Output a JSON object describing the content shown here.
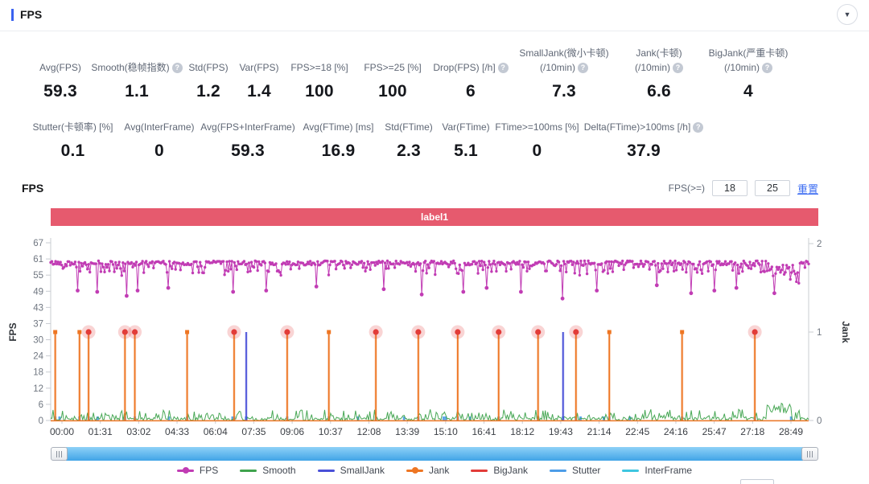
{
  "header": {
    "title": "FPS",
    "collapse_icon": "collapse-panel"
  },
  "metrics_row1": [
    {
      "label": "Avg(FPS)",
      "value": "59.3"
    },
    {
      "label": "Smooth(稳帧指数)",
      "value": "1.1",
      "help": true
    },
    {
      "label": "Std(FPS)",
      "value": "1.2"
    },
    {
      "label": "Var(FPS)",
      "value": "1.4"
    },
    {
      "label": "FPS>=18 [%]",
      "value": "100"
    },
    {
      "label": "FPS>=25 [%]",
      "value": "100"
    },
    {
      "label": "Drop(FPS) [/h]",
      "value": "6",
      "help": true
    },
    {
      "label": "SmallJank(微小卡顿)",
      "label2": "(/10min)",
      "value": "7.3",
      "help": true
    },
    {
      "label": "Jank(卡顿)",
      "label2": "(/10min)",
      "value": "6.6",
      "help": true
    },
    {
      "label": "BigJank(严重卡顿)",
      "label2": "(/10min)",
      "value": "4",
      "help": true
    }
  ],
  "metrics_row2": [
    {
      "label": "Stutter(卡顿率) [%]",
      "value": "0.1"
    },
    {
      "label": "Avg(InterFrame)",
      "value": "0"
    },
    {
      "label": "Avg(FPS+InterFrame)",
      "value": "59.3"
    },
    {
      "label": "Avg(FTime) [ms]",
      "value": "16.9"
    },
    {
      "label": "Std(FTime)",
      "value": "2.3"
    },
    {
      "label": "Var(FTime)",
      "value": "5.1"
    },
    {
      "label": "FTime>=100ms [%]",
      "value": "0"
    },
    {
      "label": "Delta(FTime)>100ms [/h]",
      "value": "37.9",
      "help": true
    }
  ],
  "chart_section": {
    "title": "FPS",
    "filter_label": "FPS(>=)",
    "input1": "18",
    "input2": "25",
    "reset_label": "重置",
    "banner": {
      "text": "label1",
      "color": "#e65a6e"
    }
  },
  "chart_data": {
    "type": "line",
    "title": "FPS",
    "x_axis": {
      "tick_labels": [
        "00:00",
        "01:31",
        "03:02",
        "04:33",
        "06:04",
        "07:35",
        "09:06",
        "10:37",
        "12:08",
        "13:39",
        "15:10",
        "16:41",
        "18:12",
        "19:43",
        "21:14",
        "22:45",
        "24:16",
        "25:47",
        "27:18",
        "28:49"
      ]
    },
    "y_axis_left": {
      "label": "FPS",
      "ticks": [
        67,
        61,
        55,
        49,
        43,
        37,
        30,
        24,
        18,
        12,
        6,
        0
      ],
      "range": [
        0,
        67
      ]
    },
    "y_axis_right": {
      "label": "Jank",
      "ticks": [
        2,
        1,
        0
      ],
      "range": [
        0,
        2
      ]
    },
    "grid": false,
    "legend_position": "bottom",
    "series": [
      {
        "name": "FPS",
        "color": "#c13cb4",
        "style": "noisy-line",
        "axis": "left",
        "baseline": 59.3,
        "noise_band": [
          54,
          61
        ],
        "deep_dips": [
          {
            "t": 0.035,
            "v": 49
          },
          {
            "t": 0.062,
            "v": 48.5
          },
          {
            "t": 0.1,
            "v": 47
          },
          {
            "t": 0.115,
            "v": 49
          },
          {
            "t": 0.155,
            "v": 50
          },
          {
            "t": 0.24,
            "v": 48.5
          },
          {
            "t": 0.285,
            "v": 49
          },
          {
            "t": 0.35,
            "v": 50.5
          },
          {
            "t": 0.44,
            "v": 49.5
          },
          {
            "t": 0.49,
            "v": 47.5
          },
          {
            "t": 0.545,
            "v": 48.5
          },
          {
            "t": 0.575,
            "v": 50
          },
          {
            "t": 0.62,
            "v": 48.5
          },
          {
            "t": 0.675,
            "v": 46
          },
          {
            "t": 0.72,
            "v": 49
          },
          {
            "t": 0.8,
            "v": 51
          },
          {
            "t": 0.845,
            "v": 48
          },
          {
            "t": 0.875,
            "v": 49
          },
          {
            "t": 0.905,
            "v": 50
          },
          {
            "t": 0.955,
            "v": 48
          }
        ],
        "degraded_window": {
          "from": 0.948,
          "to": 0.988,
          "base": 57
        }
      },
      {
        "name": "Smooth",
        "color": "#3fa34d",
        "style": "noisy-area",
        "axis": "left",
        "range": [
          0,
          6
        ]
      },
      {
        "name": "SmallJank",
        "color": "#4950d8",
        "style": "event-spike",
        "axis": "right",
        "value": 1,
        "events_t": [
          0.258,
          0.676
        ],
        "approx_times": [
          "07:50",
          "20:30"
        ]
      },
      {
        "name": "Jank",
        "color": "#ee7623",
        "style": "event-spike",
        "axis": "right",
        "value": 1,
        "events_t": [
          0.006,
          0.038,
          0.18,
          0.367,
          0.737,
          0.833
        ],
        "approx_times": [
          "00:11",
          "01:09",
          "05:28",
          "11:08",
          "22:21",
          "25:16"
        ]
      },
      {
        "name": "BigJank",
        "color": "#e23c39",
        "style": "event-spike-dot",
        "axis": "right",
        "value": 1,
        "events_t": [
          0.05,
          0.098,
          0.111,
          0.242,
          0.312,
          0.429,
          0.485,
          0.537,
          0.591,
          0.643,
          0.693,
          0.929
        ],
        "approx_times": [
          "01:31",
          "02:58",
          "03:22",
          "07:20",
          "09:28",
          "13:01",
          "14:43",
          "16:17",
          "17:56",
          "19:30",
          "21:01",
          "28:11"
        ]
      },
      {
        "name": "Stutter",
        "color": "#4d9de8",
        "style": "micro-bar",
        "axis": "left"
      },
      {
        "name": "InterFrame",
        "color": "#3ec6e0",
        "style": "baseline",
        "axis": "left",
        "value": 0
      }
    ]
  },
  "legend": [
    {
      "name": "FPS",
      "color": "#c13cb4",
      "marker": "line-dot"
    },
    {
      "name": "Smooth",
      "color": "#3fa34d",
      "marker": "line"
    },
    {
      "name": "SmallJank",
      "color": "#4950d8",
      "marker": "line"
    },
    {
      "name": "Jank",
      "color": "#ee7623",
      "marker": "line-dot"
    },
    {
      "name": "BigJank",
      "color": "#e23c39",
      "marker": "line"
    },
    {
      "name": "Stutter",
      "color": "#4d9de8",
      "marker": "line"
    },
    {
      "name": "InterFrame",
      "color": "#3ec6e0",
      "marker": "line"
    }
  ],
  "colors": {
    "accent_blue": "#3a62f0",
    "banner_red": "#e65a6e",
    "link_blue": "#3d6df2",
    "axis_gray": "#c9ccd2",
    "scrollbar_blue": "#41a4e7"
  }
}
